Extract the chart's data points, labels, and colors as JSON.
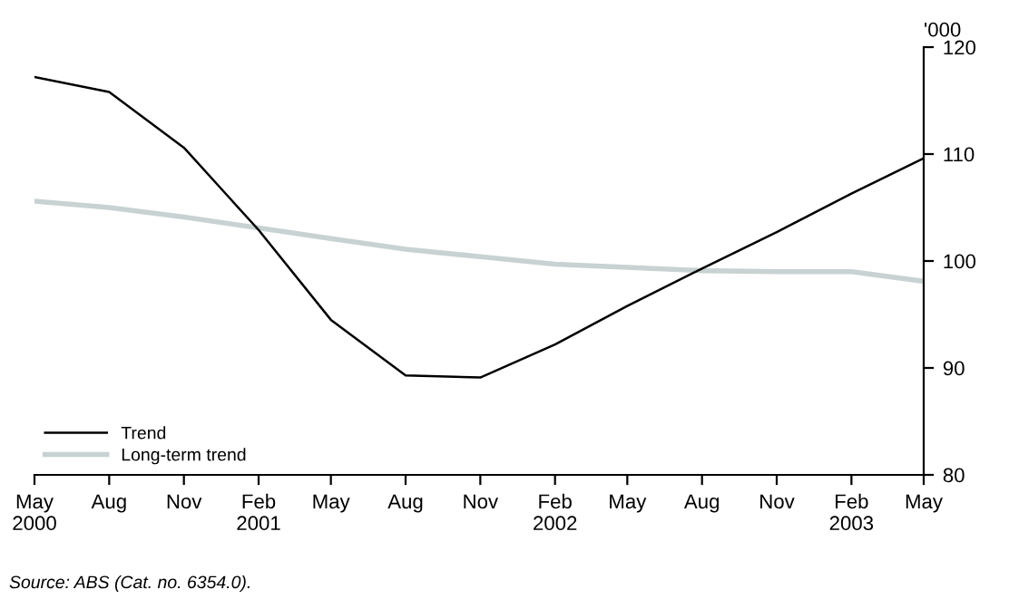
{
  "chart_data": {
    "type": "line",
    "ylabel": "'000",
    "x": [
      "2000-05",
      "2000-08",
      "2000-11",
      "2001-02",
      "2001-05",
      "2001-08",
      "2001-11",
      "2002-02",
      "2002-05",
      "2002-08",
      "2002-11",
      "2003-02",
      "2003-05"
    ],
    "series": [
      {
        "name": "Trend",
        "color": "#000000",
        "values": [
          117.2,
          115.8,
          110.6,
          102.9,
          94.5,
          89.3,
          89.1,
          92.2,
          95.8,
          99.3,
          102.7,
          106.3,
          109.6
        ]
      },
      {
        "name": "Long-term trend",
        "color": "#c8d2d2",
        "values": [
          105.6,
          105.0,
          104.1,
          103.1,
          102.1,
          101.1,
          100.4,
          99.7,
          99.4,
          99.1,
          99.0,
          99.0,
          98.1
        ]
      }
    ],
    "xlim": [
      "2000-05",
      "2003-05"
    ],
    "xticks": [
      {
        "value": "2000-05",
        "label": "May\n2000"
      },
      {
        "value": "2000-08",
        "label": "Aug"
      },
      {
        "value": "2000-11",
        "label": "Nov"
      },
      {
        "value": "2001-02",
        "label": "Feb\n2001"
      },
      {
        "value": "2001-05",
        "label": "May"
      },
      {
        "value": "2001-08",
        "label": "Aug"
      },
      {
        "value": "2001-11",
        "label": "Nov"
      },
      {
        "value": "2002-02",
        "label": "Feb\n2002"
      },
      {
        "value": "2002-05",
        "label": "May"
      },
      {
        "value": "2002-08",
        "label": "Aug"
      },
      {
        "value": "2002-11",
        "label": "Nov"
      },
      {
        "value": "2003-02",
        "label": "Feb\n2003"
      },
      {
        "value": "2003-05",
        "label": "May"
      }
    ],
    "ylim": [
      80,
      120
    ],
    "yticks": [
      80,
      90,
      100,
      110,
      120
    ],
    "grid": false,
    "legend": "bottom left",
    "marker": "none",
    "line_style": "solid",
    "annotations": [
      "Source: ABS (Cat. no. 6354.0)."
    ]
  }
}
